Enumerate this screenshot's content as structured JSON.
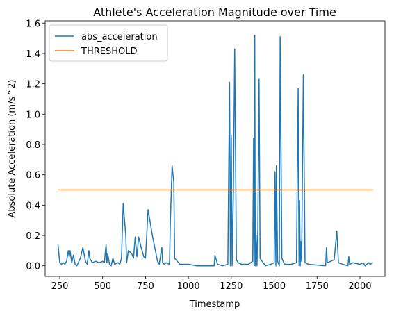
{
  "chart_data": {
    "type": "line",
    "title": "Athlete's Acceleration Magnitude over Time",
    "xlabel": "Timestamp",
    "ylabel": "Absolute Acceleration (m/s^2)",
    "legend": "upper left",
    "xlim": [
      165,
      2146
    ],
    "ylim": [
      -0.07,
      1.615
    ],
    "xticks": [
      250,
      500,
      750,
      1000,
      1250,
      1500,
      1750,
      2000
    ],
    "yticks": [
      {
        "value": 0,
        "label": "0.0"
      },
      0.2,
      0.4,
      0.6,
      0.8,
      {
        "value": 1,
        "label": "1.0"
      },
      1.2,
      1.4,
      1.6
    ],
    "series": [
      {
        "name": "abs_acceleration",
        "color": "#1f77b4",
        "x": [
          240,
          250,
          260,
          270,
          280,
          290,
          300,
          305,
          310,
          320,
          330,
          340,
          350,
          370,
          385,
          400,
          410,
          420,
          425,
          440,
          460,
          480,
          500,
          510,
          520,
          525,
          530,
          540,
          550,
          560,
          570,
          590,
          600,
          610,
          620,
          635,
          640,
          650,
          670,
          680,
          690,
          700,
          710,
          725,
          740,
          750,
          765,
          790,
          820,
          830,
          845,
          850,
          860,
          870,
          890,
          895,
          905,
          915,
          920,
          950,
          1000,
          1050,
          1100,
          1150,
          1155,
          1170,
          1200,
          1230,
          1240,
          1245,
          1250,
          1255,
          1262,
          1270,
          1280,
          1290,
          1310,
          1350,
          1375,
          1380,
          1383,
          1387,
          1390,
          1395,
          1400,
          1405,
          1412,
          1418,
          1430,
          1450,
          1480,
          1500,
          1505,
          1510,
          1513,
          1520,
          1530,
          1535,
          1545,
          1560,
          1600,
          1630,
          1640,
          1645,
          1648,
          1652,
          1655,
          1660,
          1670,
          1680,
          1700,
          1800,
          1805,
          1810,
          1830,
          1850,
          1865,
          1875,
          1900,
          1930,
          1935,
          1940,
          1960,
          2000,
          2020,
          2030,
          2050,
          2060,
          2075
        ],
        "values": [
          0.14,
          0.02,
          0.01,
          0.02,
          0.01,
          0.03,
          0.1,
          0.06,
          0.1,
          0.02,
          0.07,
          0.01,
          0.0,
          0.05,
          0.12,
          0.03,
          0.01,
          0.1,
          0.05,
          0.02,
          0.03,
          0.02,
          0.03,
          0.02,
          0.14,
          0.02,
          0.08,
          0.01,
          0.0,
          0.05,
          0.01,
          0.02,
          0.01,
          0.05,
          0.41,
          0.2,
          0.02,
          0.1,
          0.08,
          0.05,
          0.19,
          0.06,
          0.19,
          0.12,
          0.06,
          0.05,
          0.37,
          0.2,
          0.03,
          0.01,
          0.12,
          0.02,
          0.01,
          0.02,
          0.01,
          0.3,
          0.66,
          0.55,
          0.05,
          0.01,
          0.01,
          0.0,
          0.0,
          0.0,
          0.07,
          0.01,
          0.0,
          0.01,
          1.21,
          0.0,
          0.86,
          0.0,
          0.46,
          1.43,
          0.04,
          0.02,
          0.01,
          0.01,
          0.03,
          0.84,
          0.0,
          1.52,
          0.0,
          0.2,
          0.0,
          0.25,
          1.23,
          0.05,
          0.03,
          0.0,
          0.01,
          0.02,
          0.62,
          0.0,
          0.66,
          0.03,
          0.0,
          1.51,
          0.05,
          0.01,
          0.01,
          0.02,
          1.17,
          0.0,
          0.43,
          0.0,
          0.16,
          0.03,
          1.26,
          0.02,
          0.01,
          0.0,
          0.12,
          0.02,
          0.03,
          0.04,
          0.23,
          0.02,
          0.01,
          0.0,
          0.06,
          0.01,
          0.02,
          0.01,
          0.02,
          0.0,
          0.02,
          0.01,
          0.02
        ]
      },
      {
        "name": "THRESHOLD",
        "color": "#ff7f0e",
        "x": [
          240,
          2075
        ],
        "values": [
          0.5,
          0.5
        ]
      }
    ]
  }
}
